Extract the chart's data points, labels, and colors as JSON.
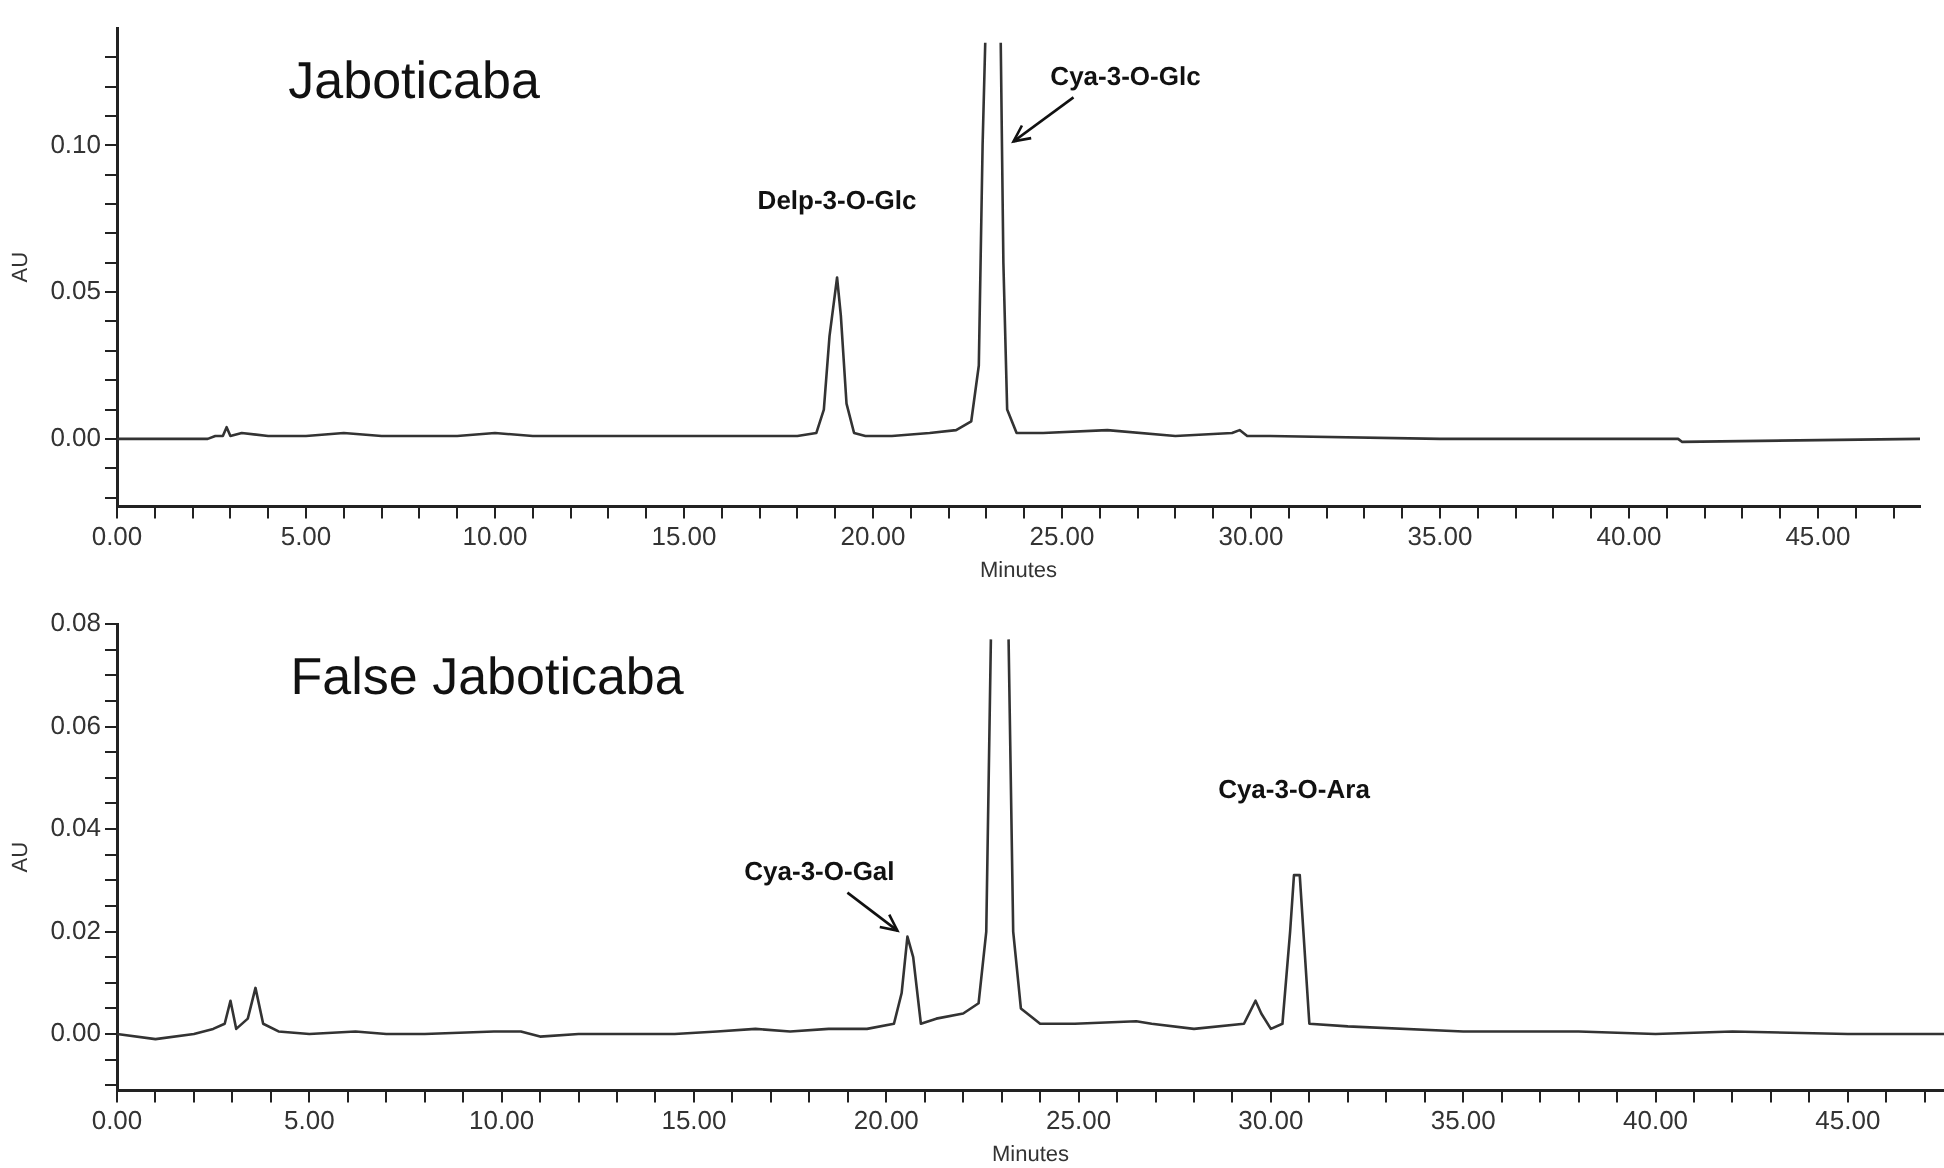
{
  "chart_data": [
    {
      "type": "line",
      "title": "Jaboticaba",
      "xlabel": "Minutes",
      "ylabel": "AU",
      "marker": "none",
      "line_style": "solid",
      "x": [
        0,
        2.4,
        2.6,
        2.8,
        2.9,
        3.0,
        3.3,
        4,
        5,
        6,
        7,
        8,
        9,
        10,
        11,
        12,
        13,
        14,
        15,
        16,
        17,
        18,
        18.5,
        18.7,
        18.85,
        18.95,
        19.05,
        19.15,
        19.3,
        19.5,
        19.8,
        20.5,
        21.5,
        22.2,
        22.6,
        22.8,
        22.9,
        22.97,
        23.1,
        23.38,
        23.45,
        23.55,
        23.8,
        24.5,
        26.2,
        28,
        29.5,
        29.7,
        29.9,
        30.5,
        35,
        41.3,
        41.4,
        47.7
      ],
      "series": [
        {
          "color": "#333333",
          "values": [
            0,
            0,
            0.001,
            0.001,
            0.004,
            0.001,
            0.002,
            0.001,
            0.001,
            0.002,
            0.001,
            0.001,
            0.001,
            0.002,
            0.001,
            0.001,
            0.001,
            0.001,
            0.001,
            0.001,
            0.001,
            0.001,
            0.002,
            0.01,
            0.035,
            0.045,
            0.055,
            0.042,
            0.012,
            0.002,
            0.001,
            0.001,
            0.002,
            0.003,
            0.006,
            0.025,
            0.1,
            0.135,
            null,
            0.135,
            0.06,
            0.01,
            0.002,
            0.002,
            0.003,
            0.001,
            0.002,
            0.003,
            0.001,
            0.001,
            0,
            0,
            -0.001,
            0
          ]
        }
      ],
      "xlim": [
        0,
        47.7
      ],
      "xticks": [
        {
          "value": 0,
          "label": "0.00"
        },
        {
          "value": 1,
          "label": null
        },
        {
          "value": 2,
          "label": null
        },
        {
          "value": 3,
          "label": null
        },
        {
          "value": 4,
          "label": null
        },
        {
          "value": 5,
          "label": "5.00"
        },
        {
          "value": 6,
          "label": null
        },
        {
          "value": 7,
          "label": null
        },
        {
          "value": 8,
          "label": null
        },
        {
          "value": 9,
          "label": null
        },
        {
          "value": 10,
          "label": "10.00"
        },
        {
          "value": 11,
          "label": null
        },
        {
          "value": 12,
          "label": null
        },
        {
          "value": 13,
          "label": null
        },
        {
          "value": 14,
          "label": null
        },
        {
          "value": 15,
          "label": "15.00"
        },
        {
          "value": 16,
          "label": null
        },
        {
          "value": 17,
          "label": null
        },
        {
          "value": 18,
          "label": null
        },
        {
          "value": 19,
          "label": null
        },
        {
          "value": 20,
          "label": "20.00"
        },
        {
          "value": 21,
          "label": null
        },
        {
          "value": 22,
          "label": null
        },
        {
          "value": 23,
          "label": null
        },
        {
          "value": 24,
          "label": null
        },
        {
          "value": 25,
          "label": "25.00"
        },
        {
          "value": 26,
          "label": null
        },
        {
          "value": 27,
          "label": null
        },
        {
          "value": 28,
          "label": null
        },
        {
          "value": 29,
          "label": null
        },
        {
          "value": 30,
          "label": "30.00"
        },
        {
          "value": 31,
          "label": null
        },
        {
          "value": 32,
          "label": null
        },
        {
          "value": 33,
          "label": null
        },
        {
          "value": 34,
          "label": null
        },
        {
          "value": 35,
          "label": "35.00"
        },
        {
          "value": 36,
          "label": null
        },
        {
          "value": 37,
          "label": null
        },
        {
          "value": 38,
          "label": null
        },
        {
          "value": 39,
          "label": null
        },
        {
          "value": 40,
          "label": "40.00"
        },
        {
          "value": 41,
          "label": null
        },
        {
          "value": 42,
          "label": null
        },
        {
          "value": 43,
          "label": null
        },
        {
          "value": 44,
          "label": null
        },
        {
          "value": 45,
          "label": "45.00"
        },
        {
          "value": 46,
          "label": null
        },
        {
          "value": 47,
          "label": null
        }
      ],
      "ylim": [
        -0.023,
        0.14
      ],
      "yticks": [
        {
          "value": -0.02,
          "label": null
        },
        {
          "value": -0.01,
          "label": null
        },
        {
          "value": 0,
          "label": "0.00"
        },
        {
          "value": 0.01,
          "label": null
        },
        {
          "value": 0.02,
          "label": null
        },
        {
          "value": 0.03,
          "label": null
        },
        {
          "value": 0.04,
          "label": null
        },
        {
          "value": 0.05,
          "label": "0.05"
        },
        {
          "value": 0.06,
          "label": null
        },
        {
          "value": 0.07,
          "label": null
        },
        {
          "value": 0.08,
          "label": null
        },
        {
          "value": 0.09,
          "label": null
        },
        {
          "value": 0.1,
          "label": "0.10"
        },
        {
          "value": 0.11,
          "label": null
        },
        {
          "value": 0.12,
          "label": null
        },
        {
          "value": 0.13,
          "label": null
        }
      ],
      "annotations": [
        {
          "text": "Delp-3-O-Glc",
          "x": 19.05,
          "y": 0.055
        },
        {
          "text": "Cya-3-O-Glc",
          "x": 23.4,
          "y": 0.1
        }
      ]
    },
    {
      "type": "line",
      "title": "False Jaboticaba",
      "xlabel": "Minutes",
      "ylabel": "AU",
      "marker": "none",
      "line_style": "solid",
      "x": [
        0,
        1,
        2,
        2.5,
        2.8,
        2.95,
        3.1,
        3.4,
        3.6,
        3.8,
        4.2,
        5,
        6.2,
        7,
        8,
        9.8,
        10.5,
        11,
        12,
        13,
        14.5,
        15.6,
        16.6,
        17.5,
        18.5,
        19.5,
        20.2,
        20.4,
        20.55,
        20.7,
        20.9,
        21.3,
        22,
        22.4,
        22.6,
        22.72,
        22.9,
        23.18,
        23.3,
        23.5,
        24,
        24.9,
        26.5,
        26.9,
        28,
        29.3,
        29.6,
        29.75,
        30,
        30.3,
        30.5,
        30.6,
        30.75,
        31,
        32,
        35,
        38,
        40,
        42,
        45,
        47.5
      ],
      "series": [
        {
          "color": "#333333",
          "values": [
            0,
            -0.001,
            0,
            0.001,
            0.002,
            0.0065,
            0.001,
            0.003,
            0.009,
            0.002,
            0.0005,
            0,
            0.0005,
            0,
            0,
            0.0005,
            0.0005,
            -0.0005,
            0,
            0,
            0,
            0.0005,
            0.001,
            0.0005,
            0.001,
            0.001,
            0.002,
            0.008,
            0.019,
            0.015,
            0.002,
            0.003,
            0.004,
            0.006,
            0.02,
            0.077,
            null,
            0.077,
            0.02,
            0.005,
            0.002,
            0.002,
            0.0025,
            0.002,
            0.001,
            0.002,
            0.0065,
            0.004,
            0.001,
            0.002,
            0.02,
            0.031,
            0.031,
            0.002,
            0.0015,
            0.0005,
            0.0005,
            0,
            0.0005,
            0,
            0
          ]
        }
      ],
      "xlim": [
        0,
        47.5
      ],
      "xticks": [
        {
          "value": 0,
          "label": "0.00"
        },
        {
          "value": 1,
          "label": null
        },
        {
          "value": 2,
          "label": null
        },
        {
          "value": 3,
          "label": null
        },
        {
          "value": 4,
          "label": null
        },
        {
          "value": 5,
          "label": "5.00"
        },
        {
          "value": 6,
          "label": null
        },
        {
          "value": 7,
          "label": null
        },
        {
          "value": 8,
          "label": null
        },
        {
          "value": 9,
          "label": null
        },
        {
          "value": 10,
          "label": "10.00"
        },
        {
          "value": 11,
          "label": null
        },
        {
          "value": 12,
          "label": null
        },
        {
          "value": 13,
          "label": null
        },
        {
          "value": 14,
          "label": null
        },
        {
          "value": 15,
          "label": "15.00"
        },
        {
          "value": 16,
          "label": null
        },
        {
          "value": 17,
          "label": null
        },
        {
          "value": 18,
          "label": null
        },
        {
          "value": 19,
          "label": null
        },
        {
          "value": 20,
          "label": "20.00"
        },
        {
          "value": 21,
          "label": null
        },
        {
          "value": 22,
          "label": null
        },
        {
          "value": 23,
          "label": null
        },
        {
          "value": 24,
          "label": null
        },
        {
          "value": 25,
          "label": "25.00"
        },
        {
          "value": 26,
          "label": null
        },
        {
          "value": 27,
          "label": null
        },
        {
          "value": 28,
          "label": null
        },
        {
          "value": 29,
          "label": null
        },
        {
          "value": 30,
          "label": "30.00"
        },
        {
          "value": 31,
          "label": null
        },
        {
          "value": 32,
          "label": null
        },
        {
          "value": 33,
          "label": null
        },
        {
          "value": 34,
          "label": null
        },
        {
          "value": 35,
          "label": "35.00"
        },
        {
          "value": 36,
          "label": null
        },
        {
          "value": 37,
          "label": null
        },
        {
          "value": 38,
          "label": null
        },
        {
          "value": 39,
          "label": null
        },
        {
          "value": 40,
          "label": "40.00"
        },
        {
          "value": 41,
          "label": null
        },
        {
          "value": 42,
          "label": null
        },
        {
          "value": 43,
          "label": null
        },
        {
          "value": 44,
          "label": null
        },
        {
          "value": 45,
          "label": "45.00"
        },
        {
          "value": 46,
          "label": null
        },
        {
          "value": 47,
          "label": null
        }
      ],
      "ylim": [
        -0.011,
        0.08
      ],
      "yticks": [
        {
          "value": -0.01,
          "label": null
        },
        {
          "value": -0.005,
          "label": null
        },
        {
          "value": 0,
          "label": "0.00"
        },
        {
          "value": 0.005,
          "label": null
        },
        {
          "value": 0.01,
          "label": null
        },
        {
          "value": 0.015,
          "label": null
        },
        {
          "value": 0.02,
          "label": "0.02"
        },
        {
          "value": 0.025,
          "label": null
        },
        {
          "value": 0.03,
          "label": null
        },
        {
          "value": 0.035,
          "label": null
        },
        {
          "value": 0.04,
          "label": "0.04"
        },
        {
          "value": 0.045,
          "label": null
        },
        {
          "value": 0.05,
          "label": null
        },
        {
          "value": 0.055,
          "label": null
        },
        {
          "value": 0.06,
          "label": "0.06"
        },
        {
          "value": 0.065,
          "label": null
        },
        {
          "value": 0.07,
          "label": null
        },
        {
          "value": 0.075,
          "label": null
        },
        {
          "value": 0.08,
          "label": "0.08"
        }
      ],
      "annotations": [
        {
          "text": "Cya-3-O-Gal",
          "x": 20.55,
          "y": 0.019
        },
        {
          "text": "Cya-3-O-Ara",
          "x": 30.6,
          "y": 0.031
        }
      ]
    }
  ]
}
